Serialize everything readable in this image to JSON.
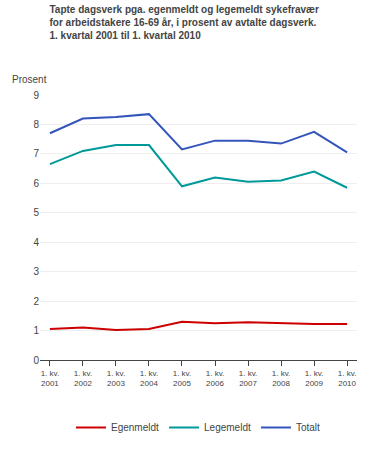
{
  "chart_data": {
    "type": "line",
    "title": "Tapte dagsverk pga. egenmeldt og legemeldt sykefravær\nfor arbeidstakere 16-69 år, i prosent av avtalte dagsverk.\n1. kvartal 2001 til 1. kvartal 2010",
    "ylabel": "Prosent",
    "categories": [
      "1. kv.\n2001",
      "1. kv.\n2002",
      "1. kv.\n2003",
      "1. kv.\n2004",
      "1. kv.\n2005",
      "1. kv.\n2006",
      "1. kv.\n2007",
      "1. kv.\n2008",
      "1. kv.\n2009",
      "1. kv.\n2010"
    ],
    "series": [
      {
        "name": "Egenmeldt",
        "color": "#cc0000",
        "values": [
          1.05,
          1.1,
          1.02,
          1.05,
          1.3,
          1.25,
          1.28,
          1.25,
          1.22,
          1.22
        ]
      },
      {
        "name": "Legemeldt",
        "color": "#009999",
        "values": [
          6.65,
          7.1,
          7.3,
          7.3,
          5.9,
          6.2,
          6.05,
          6.1,
          6.4,
          5.85
        ]
      },
      {
        "name": "Totalt",
        "color": "#3355bb",
        "values": [
          7.7,
          8.2,
          8.25,
          8.35,
          7.15,
          7.45,
          7.45,
          7.35,
          7.75,
          7.05
        ]
      }
    ],
    "ylim": [
      0,
      9
    ],
    "yticks": [
      0,
      1,
      2,
      3,
      4,
      5,
      6,
      7,
      8,
      9
    ],
    "grid": true,
    "legend": "bottom"
  }
}
